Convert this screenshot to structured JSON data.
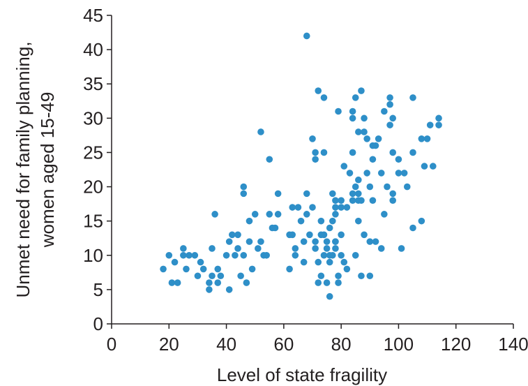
{
  "chart_data": {
    "type": "scatter",
    "title": "",
    "xlabel": "Level of state fragility",
    "ylabel_lines": [
      "Unmet need for family planning,",
      "women aged  15-49"
    ],
    "xlim": [
      0,
      140
    ],
    "ylim": [
      0,
      45
    ],
    "xticks": [
      0,
      20,
      40,
      60,
      80,
      100,
      120,
      140
    ],
    "yticks": [
      0,
      5,
      10,
      15,
      20,
      25,
      30,
      35,
      40,
      45
    ],
    "grid": false,
    "point_color": "#2e8fc8",
    "points": [
      [
        18,
        8
      ],
      [
        20,
        10
      ],
      [
        21,
        6
      ],
      [
        22,
        9
      ],
      [
        23,
        6
      ],
      [
        25,
        10
      ],
      [
        25,
        11
      ],
      [
        26,
        8
      ],
      [
        27,
        10
      ],
      [
        29,
        10
      ],
      [
        30,
        7
      ],
      [
        31,
        9
      ],
      [
        32,
        8
      ],
      [
        34,
        5
      ],
      [
        34,
        6
      ],
      [
        35,
        11
      ],
      [
        35,
        7
      ],
      [
        36,
        16
      ],
      [
        37,
        8
      ],
      [
        37,
        6
      ],
      [
        38,
        7
      ],
      [
        40,
        10
      ],
      [
        41,
        12
      ],
      [
        41,
        5
      ],
      [
        42,
        13
      ],
      [
        43,
        10
      ],
      [
        44,
        11
      ],
      [
        44,
        13
      ],
      [
        45,
        7
      ],
      [
        46,
        10
      ],
      [
        46,
        19
      ],
      [
        46,
        20
      ],
      [
        47,
        6
      ],
      [
        48,
        15
      ],
      [
        48,
        12
      ],
      [
        49,
        8
      ],
      [
        50,
        16
      ],
      [
        51,
        11
      ],
      [
        52,
        12
      ],
      [
        52,
        28
      ],
      [
        53,
        10
      ],
      [
        54,
        10
      ],
      [
        55,
        16
      ],
      [
        55,
        24
      ],
      [
        56,
        14
      ],
      [
        57,
        14
      ],
      [
        58,
        16
      ],
      [
        58,
        19
      ],
      [
        62,
        8
      ],
      [
        62,
        13
      ],
      [
        63,
        13
      ],
      [
        63,
        17
      ],
      [
        64,
        11
      ],
      [
        64,
        10
      ],
      [
        65,
        17
      ],
      [
        66,
        15
      ],
      [
        67,
        12
      ],
      [
        67,
        9
      ],
      [
        68,
        42
      ],
      [
        68,
        16
      ],
      [
        68,
        19
      ],
      [
        69,
        13
      ],
      [
        70,
        27
      ],
      [
        70,
        17
      ],
      [
        71,
        25
      ],
      [
        71,
        24
      ],
      [
        71,
        12
      ],
      [
        71,
        11
      ],
      [
        72,
        34
      ],
      [
        72,
        9
      ],
      [
        72,
        6
      ],
      [
        73,
        7
      ],
      [
        73,
        13
      ],
      [
        73,
        15
      ],
      [
        74,
        33
      ],
      [
        74,
        10
      ],
      [
        74,
        25
      ],
      [
        74,
        13
      ],
      [
        75,
        6
      ],
      [
        75,
        11
      ],
      [
        75,
        12
      ],
      [
        76,
        4
      ],
      [
        76,
        9
      ],
      [
        76,
        10
      ],
      [
        76,
        14
      ],
      [
        77,
        19
      ],
      [
        77,
        15
      ],
      [
        77,
        10
      ],
      [
        78,
        16
      ],
      [
        78,
        18
      ],
      [
        78,
        17
      ],
      [
        78,
        11
      ],
      [
        78,
        12
      ],
      [
        78,
        12
      ],
      [
        79,
        31
      ],
      [
        79,
        7
      ],
      [
        79,
        6
      ],
      [
        80,
        13
      ],
      [
        80,
        17
      ],
      [
        80,
        10
      ],
      [
        80,
        18
      ],
      [
        81,
        9
      ],
      [
        81,
        23
      ],
      [
        82,
        17
      ],
      [
        82,
        8
      ],
      [
        83,
        22
      ],
      [
        84,
        31
      ],
      [
        84,
        30
      ],
      [
        84,
        25
      ],
      [
        84,
        19
      ],
      [
        84,
        18
      ],
      [
        85,
        33
      ],
      [
        85,
        20
      ],
      [
        85,
        10
      ],
      [
        86,
        21
      ],
      [
        86,
        28
      ],
      [
        86,
        19
      ],
      [
        86,
        15
      ],
      [
        86,
        18
      ],
      [
        87,
        34
      ],
      [
        87,
        18
      ],
      [
        87,
        7
      ],
      [
        88,
        30
      ],
      [
        88,
        28
      ],
      [
        88,
        13
      ],
      [
        89,
        27
      ],
      [
        89,
        22
      ],
      [
        90,
        20
      ],
      [
        90,
        12
      ],
      [
        90,
        7
      ],
      [
        91,
        18
      ],
      [
        91,
        26
      ],
      [
        91,
        24
      ],
      [
        92,
        26
      ],
      [
        92,
        12
      ],
      [
        93,
        27
      ],
      [
        94,
        11
      ],
      [
        94,
        22
      ],
      [
        95,
        31
      ],
      [
        95,
        16
      ],
      [
        96,
        20
      ],
      [
        97,
        33
      ],
      [
        97,
        29
      ],
      [
        97,
        32
      ],
      [
        98,
        30
      ],
      [
        98,
        25
      ],
      [
        98,
        19
      ],
      [
        98,
        18
      ],
      [
        100,
        22
      ],
      [
        100,
        24
      ],
      [
        101,
        11
      ],
      [
        102,
        22
      ],
      [
        103,
        20
      ],
      [
        105,
        25
      ],
      [
        105,
        33
      ],
      [
        105,
        14
      ],
      [
        108,
        27
      ],
      [
        108,
        15
      ],
      [
        109,
        23
      ],
      [
        110,
        27
      ],
      [
        111,
        29
      ],
      [
        112,
        23
      ],
      [
        114,
        29
      ],
      [
        114,
        30
      ]
    ]
  }
}
